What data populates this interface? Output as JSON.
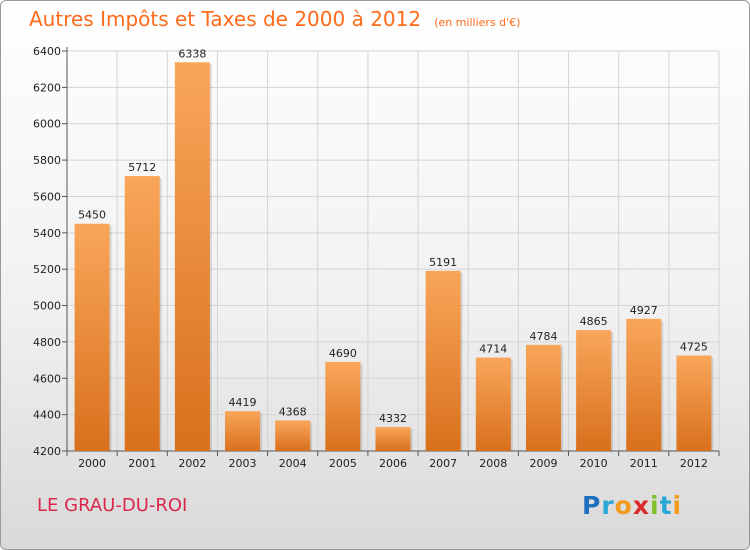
{
  "chart_data": {
    "type": "bar",
    "title": "Autres Impôts et Taxes de 2000 à 2012",
    "subtitle": "(en milliers d'€)",
    "categories": [
      "2000",
      "2001",
      "2002",
      "2003",
      "2004",
      "2005",
      "2006",
      "2007",
      "2008",
      "2009",
      "2010",
      "2011",
      "2012"
    ],
    "values": [
      5450,
      5712,
      6338,
      4419,
      4368,
      4690,
      4332,
      5191,
      4714,
      4784,
      4865,
      4927,
      4725
    ],
    "ylim": [
      4200,
      6400
    ],
    "yticks": [
      4200,
      4400,
      4600,
      4800,
      5000,
      5200,
      5400,
      5600,
      5800,
      6000,
      6200,
      6400
    ],
    "grid": true,
    "bar_color_top": "#f9a65a",
    "bar_color_bottom": "#d8701c",
    "xlabel": "",
    "ylabel": ""
  },
  "footer": {
    "commune": "LE GRAU-DU-ROI",
    "logo_letters": [
      "P",
      "r",
      "o",
      "x",
      "i",
      "t",
      "i"
    ],
    "logo_colors": [
      "#1f6fbf",
      "#2aa7d8",
      "#f39a1f",
      "#d92b2b",
      "#7fbf2a",
      "#2aa7d8",
      "#f39a1f"
    ]
  }
}
